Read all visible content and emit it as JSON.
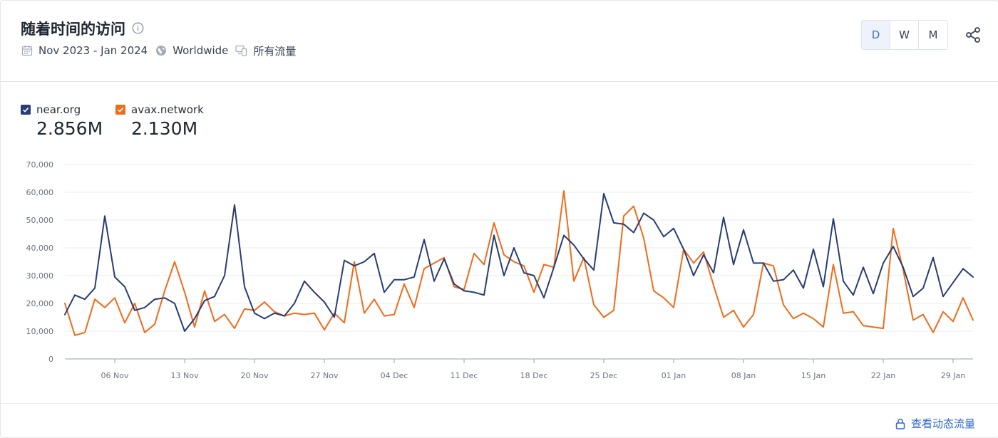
{
  "header": {
    "title": "随着时间的访问",
    "date_range": "Nov 2023 - Jan 2024",
    "region": "Worldwide",
    "traffic": "所有流量"
  },
  "granularity": {
    "options": [
      "D",
      "W",
      "M"
    ],
    "selected": "D"
  },
  "legend": [
    {
      "name": "near.org",
      "total": "2.856M",
      "color": "#283d73"
    },
    {
      "name": "avax.network",
      "total": "2.130M",
      "color": "#ee6c1b"
    }
  ],
  "footer": {
    "link_label": "查看动态流量"
  },
  "chart_data": {
    "type": "line",
    "ylim": [
      0,
      70000
    ],
    "y_ticks": [
      0,
      10000,
      20000,
      30000,
      40000,
      50000,
      60000,
      70000
    ],
    "y_tick_labels": [
      "0",
      "10,000",
      "20,000",
      "30,000",
      "40,000",
      "50,000",
      "60,000",
      "70,000"
    ],
    "x_start": "2023-11-01",
    "x_end": "2024-01-31",
    "x_ticks": [
      "2023-11-06",
      "2023-11-13",
      "2023-11-20",
      "2023-11-27",
      "2023-12-04",
      "2023-12-11",
      "2023-12-18",
      "2023-12-25",
      "2024-01-01",
      "2024-01-08",
      "2024-01-15",
      "2024-01-22",
      "2024-01-29"
    ],
    "x_tick_labels": [
      "06 Nov",
      "13 Nov",
      "20 Nov",
      "27 Nov",
      "04 Dec",
      "11 Dec",
      "18 Dec",
      "25 Dec",
      "01 Jan",
      "08 Jan",
      "15 Jan",
      "22 Jan",
      "29 Jan"
    ],
    "series": [
      {
        "name": "near.org",
        "color": "#283d73",
        "values": [
          16000,
          23000,
          21500,
          25500,
          51500,
          29500,
          26000,
          17500,
          18500,
          21500,
          22000,
          20000,
          10000,
          14500,
          21000,
          22500,
          30000,
          55500,
          26000,
          16500,
          14500,
          16500,
          15500,
          20000,
          28000,
          24000,
          20500,
          15000,
          35500,
          33500,
          35000,
          38000,
          24000,
          28500,
          28500,
          29500,
          43000,
          28000,
          36000,
          27000,
          24500,
          24000,
          23000,
          44500,
          30000,
          40000,
          31000,
          30000,
          22000,
          33000,
          44500,
          41000,
          36000,
          32000,
          59500,
          49000,
          48500,
          45500,
          52500,
          50000,
          44000,
          47000,
          39500,
          30000,
          37500,
          31000,
          51000,
          34000,
          46500,
          34500,
          34500,
          28000,
          28500,
          32000,
          25500,
          39500,
          26000,
          50500,
          28000,
          23000,
          33000,
          23500,
          34500,
          40500,
          33000,
          22500,
          25500,
          36500,
          22500,
          27500,
          32500,
          29500
        ],
        "name_display": "near.org"
      },
      {
        "name": "avax.network",
        "color": "#ee6c1b",
        "values": [
          20000,
          8500,
          9500,
          21500,
          18500,
          22000,
          13000,
          20000,
          9500,
          12500,
          24500,
          35000,
          24000,
          11500,
          24500,
          13500,
          16000,
          11000,
          18000,
          17500,
          20500,
          17000,
          15500,
          16500,
          16000,
          16500,
          10500,
          16500,
          13000,
          35000,
          16500,
          21500,
          15500,
          16000,
          27000,
          18500,
          32500,
          34500,
          36500,
          26000,
          25000,
          38000,
          34000,
          49000,
          37500,
          35000,
          33500,
          24000,
          34000,
          33000,
          60500,
          28000,
          36500,
          19500,
          15000,
          17500,
          51500,
          55000,
          43500,
          24500,
          22000,
          18500,
          39500,
          34500,
          38500,
          26500,
          15000,
          17500,
          11500,
          16000,
          34500,
          33500,
          19500,
          14500,
          16500,
          14500,
          11500,
          34000,
          16500,
          17000,
          12000,
          11500,
          11000,
          47000,
          32000,
          14000,
          16000,
          9500,
          17000,
          13500,
          22000,
          14000
        ],
        "name_display": "avax.network"
      }
    ]
  }
}
